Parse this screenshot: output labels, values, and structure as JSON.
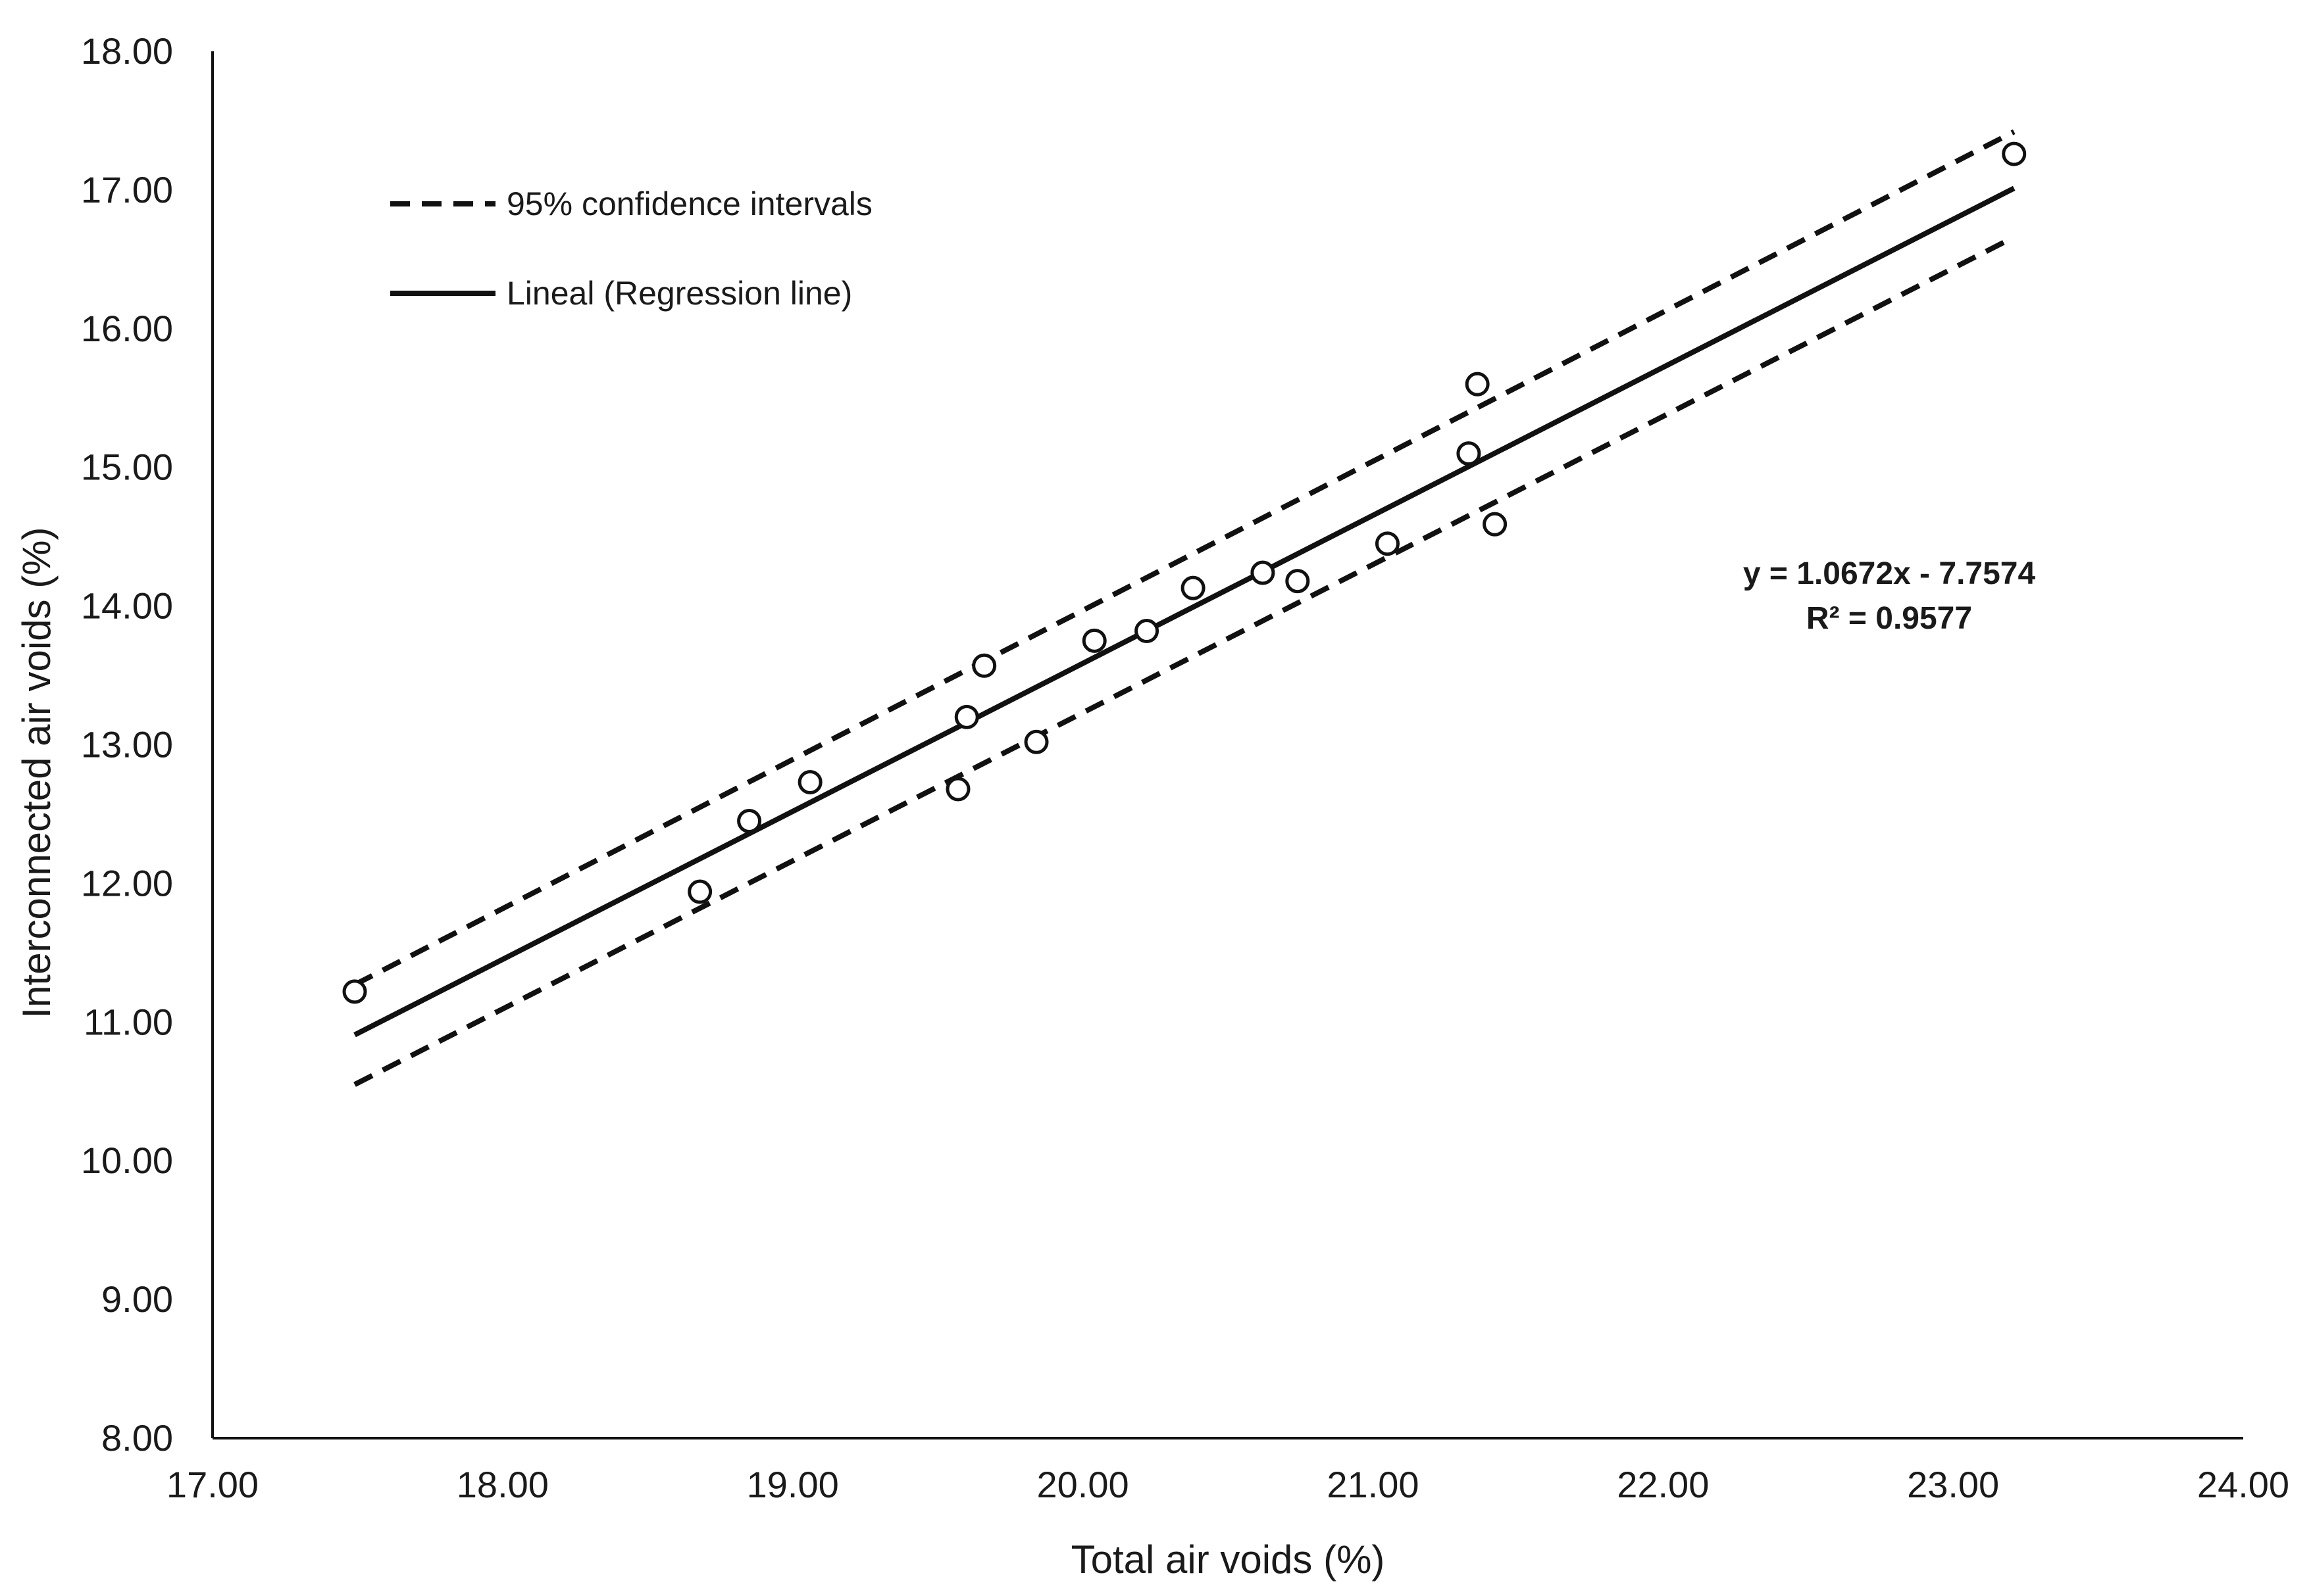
{
  "chart_data": {
    "type": "scatter",
    "title": "",
    "xlabel": "Total air voids (%)",
    "ylabel": "Interconnected air voids (%)",
    "xlim": [
      17,
      24
    ],
    "ylim": [
      8,
      18
    ],
    "x_ticks": [
      "17.00",
      "18.00",
      "19.00",
      "20.00",
      "21.00",
      "22.00",
      "23.00",
      "24.00"
    ],
    "y_ticks": [
      "8.00",
      "9.00",
      "10.00",
      "11.00",
      "12.00",
      "13.00",
      "14.00",
      "15.00",
      "16.00",
      "17.00",
      "18.00"
    ],
    "grid": false,
    "legend_position": "top-left",
    "points": [
      {
        "x": 17.49,
        "y": 11.22
      },
      {
        "x": 18.68,
        "y": 11.94
      },
      {
        "x": 18.85,
        "y": 12.45
      },
      {
        "x": 19.06,
        "y": 12.73
      },
      {
        "x": 19.57,
        "y": 12.68
      },
      {
        "x": 19.6,
        "y": 13.2
      },
      {
        "x": 19.66,
        "y": 13.57
      },
      {
        "x": 19.84,
        "y": 13.02
      },
      {
        "x": 20.04,
        "y": 13.75
      },
      {
        "x": 20.22,
        "y": 13.82
      },
      {
        "x": 20.38,
        "y": 14.13
      },
      {
        "x": 20.62,
        "y": 14.24
      },
      {
        "x": 20.74,
        "y": 14.18
      },
      {
        "x": 21.05,
        "y": 14.45
      },
      {
        "x": 21.33,
        "y": 15.1
      },
      {
        "x": 21.36,
        "y": 15.6
      },
      {
        "x": 21.42,
        "y": 14.59
      },
      {
        "x": 23.21,
        "y": 17.26
      }
    ],
    "regression": {
      "name": "Lineal (Regression line)",
      "slope": 1.0672,
      "intercept": -7.7574,
      "x_range": [
        17.49,
        23.21
      ]
    },
    "confidence_intervals": {
      "name": "95% confidence intervals",
      "upper": [
        [
          17.49,
          11.27
        ],
        [
          23.21,
          17.42
        ]
      ],
      "lower": [
        [
          17.49,
          10.55
        ],
        [
          23.21,
          16.66
        ]
      ]
    },
    "annotation": {
      "equation": "y = 1.0672x - 7.7574",
      "r2": "R² = 0.9577"
    }
  }
}
